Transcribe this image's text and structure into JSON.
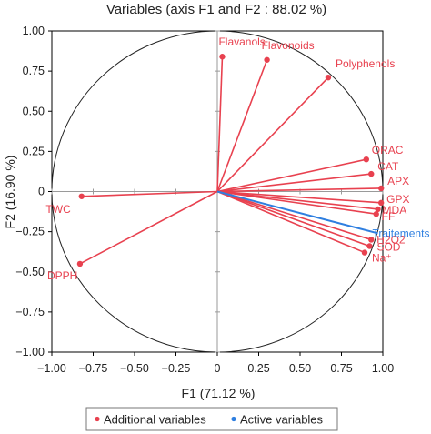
{
  "chart_data": {
    "type": "scatter",
    "title": "Variables (axis F1 and F2 : 88.02 %)",
    "xlabel": "F1 (71.12 %)",
    "ylabel": "F2 (16.90 %)",
    "xlim": [
      -1.0,
      1.0
    ],
    "ylim": [
      -1.0,
      1.0
    ],
    "x_ticks": [
      "−1.00",
      "−0.75",
      "−0.50",
      "−0.25",
      "0",
      "0.25",
      "0.50",
      "0.75",
      "1.00"
    ],
    "y_ticks": [
      "1.00",
      "0.75",
      "0.50",
      "0.25",
      "0",
      "−0.25",
      "−0.50",
      "−0.75",
      "−1.00"
    ],
    "grid": false,
    "correlation_circle": true,
    "legend_position": "bottom",
    "series": [
      {
        "name": "Additional variables",
        "color": "#e8414f",
        "points": [
          {
            "label": "Flavanols",
            "x": 0.03,
            "y": 0.84
          },
          {
            "label": "Flavonoids",
            "x": 0.3,
            "y": 0.82
          },
          {
            "label": "Polyphenols",
            "x": 0.67,
            "y": 0.71
          },
          {
            "label": "ORAC",
            "x": 0.9,
            "y": 0.2
          },
          {
            "label": "CAT",
            "x": 0.93,
            "y": 0.11
          },
          {
            "label": "APX",
            "x": 0.99,
            "y": 0.02
          },
          {
            "label": "GPX",
            "x": 0.99,
            "y": -0.07
          },
          {
            "label": "MDA",
            "x": 0.97,
            "y": -0.11
          },
          {
            "label": "FF",
            "x": 0.96,
            "y": -0.14
          },
          {
            "label": "H2O2",
            "x": 0.93,
            "y": -0.3
          },
          {
            "label": "SOD",
            "x": 0.92,
            "y": -0.34
          },
          {
            "label": "Na⁺",
            "x": 0.89,
            "y": -0.38
          },
          {
            "label": "TWC",
            "x": -0.82,
            "y": -0.03
          },
          {
            "label": "DPPH",
            "x": -0.83,
            "y": -0.45
          }
        ]
      },
      {
        "name": "Active variables",
        "color": "#2f7fe0",
        "points": [
          {
            "label": "Traitements",
            "x": 0.97,
            "y": -0.26
          }
        ]
      }
    ]
  }
}
